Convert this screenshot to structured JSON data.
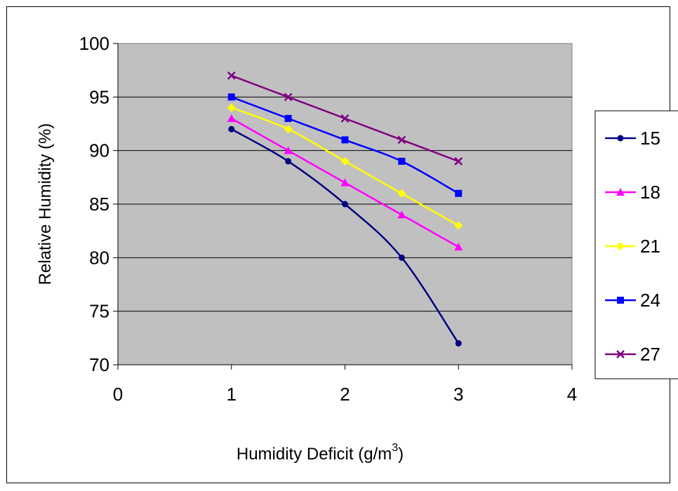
{
  "chart_data": {
    "type": "line",
    "xlabel": "Humidity Deficit (g/m",
    "xlabel_sup": "3",
    "xlabel_end": ")",
    "ylabel": "Relative Humidity  (%)",
    "xlim": [
      0,
      4
    ],
    "ylim": [
      70,
      100
    ],
    "x_ticks": [
      "0",
      "1",
      "2",
      "3",
      "4"
    ],
    "y_ticks": [
      "70",
      "75",
      "80",
      "85",
      "90",
      "95",
      "100"
    ],
    "grid": "horizontal",
    "plot_background": "#c0c0c0",
    "legend_position": "right",
    "series": [
      {
        "name": "15",
        "color": "#000080",
        "marker": "circle",
        "x": [
          1,
          1.5,
          2,
          2.5,
          3
        ],
        "y": [
          92,
          89,
          85,
          80,
          72
        ]
      },
      {
        "name": "18",
        "color": "#ff00ff",
        "marker": "triangle",
        "x": [
          1,
          1.5,
          2,
          2.5,
          3
        ],
        "y": [
          93,
          90,
          87,
          84,
          81
        ]
      },
      {
        "name": "21",
        "color": "#ffff00",
        "marker": "diamond",
        "x": [
          1,
          1.5,
          2,
          2.5,
          3
        ],
        "y": [
          94,
          92,
          89,
          86,
          83
        ]
      },
      {
        "name": "24",
        "color": "#0000ff",
        "marker": "square",
        "x": [
          1,
          1.5,
          2,
          2.5,
          3
        ],
        "y": [
          95,
          93,
          91,
          89,
          86
        ]
      },
      {
        "name": "27",
        "color": "#800080",
        "marker": "x",
        "x": [
          1,
          1.5,
          2,
          2.5,
          3
        ],
        "y": [
          97,
          95,
          93,
          91,
          89
        ]
      }
    ]
  }
}
